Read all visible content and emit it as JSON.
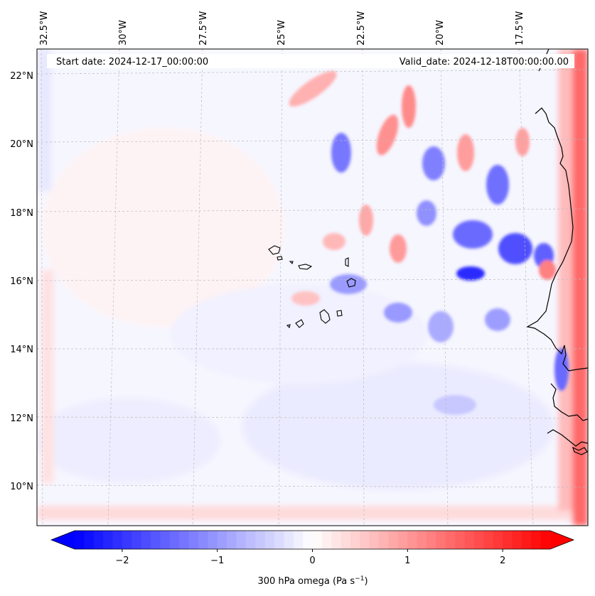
{
  "map": {
    "start_label": "Start date: 2024-12-17_00:00:00",
    "valid_label": "Valid_date: 2024-12-18T00:00:00.00",
    "lon_ticks": [
      "32.5°W",
      "30°W",
      "27.5°W",
      "25°W",
      "22.5°W",
      "20°W",
      "17.5°W"
    ],
    "lat_ticks": [
      "22°N",
      "20°N",
      "18°N",
      "16°N",
      "14°N",
      "12°N",
      "10°N"
    ],
    "field_description": "300 hPa vertical velocity (omega) field; blue = negative/ascent, red = positive/descent; strongest signals near West African coast and northeast quadrant"
  },
  "colorbar": {
    "label_main": "300 hPa omega (Pa s",
    "label_exp": "−1",
    "label_close": ")",
    "ticks": [
      "−2",
      "−1",
      "0",
      "1",
      "2"
    ],
    "tick_values": [
      -2,
      -1,
      0,
      1,
      2
    ],
    "range": [
      -2.5,
      2.5
    ],
    "cmap": "bwr",
    "colors": {
      "min": "#0000ff",
      "mid": "#ffffff",
      "max": "#ff0000"
    }
  },
  "colors": {
    "coastline": "#000000",
    "grid": "#bbbbbb"
  }
}
